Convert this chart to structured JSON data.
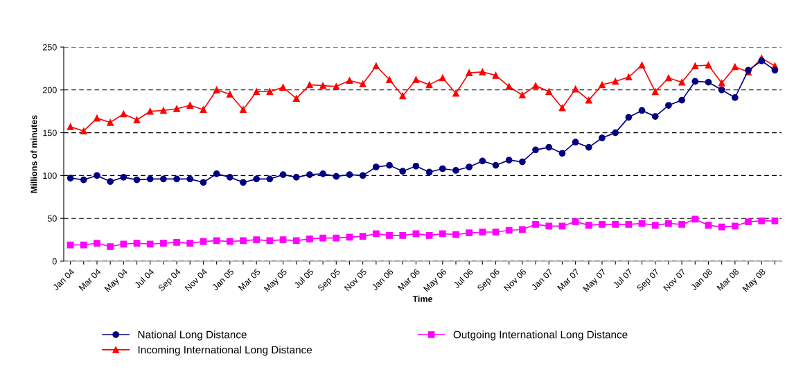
{
  "chart_data": {
    "type": "line",
    "xlabel": "Time",
    "ylabel": "Millions of minutes",
    "categories": [
      "Jan 04",
      null,
      "Mar 04",
      null,
      "May 04",
      null,
      "Jul 04",
      null,
      "Sep 04",
      null,
      "Nov 04",
      null,
      "Jan 05",
      null,
      "Mar 05",
      null,
      "May 05",
      null,
      "Jul 05",
      null,
      "Sep 05",
      null,
      "Nov 05",
      null,
      "Jan 06",
      null,
      "Mar 06",
      null,
      "May 06",
      null,
      "Jul 06",
      null,
      "Sep 06",
      null,
      "Nov 06",
      null,
      "Jan 07",
      null,
      "Mar 07",
      null,
      "May 07",
      null,
      "Jul 07",
      null,
      "Sep 07",
      null,
      "Nov 07",
      null,
      "Jan 08",
      null,
      "Mar 08",
      null,
      "May 08",
      null
    ],
    "series": [
      {
        "name": "National Long Distance",
        "color": "#000080",
        "marker": "circle",
        "values": [
          97,
          95,
          100,
          93,
          98,
          95,
          96,
          96,
          96,
          96,
          92,
          102,
          98,
          92,
          96,
          96,
          101,
          98,
          101,
          102,
          99,
          101,
          100,
          110,
          112,
          105,
          111,
          104,
          108,
          106,
          110,
          117,
          112,
          118,
          116,
          130,
          133,
          126,
          139,
          133,
          144,
          150,
          168,
          176,
          169,
          182,
          188,
          210,
          209,
          200,
          191,
          223,
          234,
          223
        ]
      },
      {
        "name": "Outgoing International Long Distance",
        "color": "#ff00ff",
        "marker": "square",
        "values": [
          19,
          19,
          21,
          17,
          20,
          21,
          20,
          21,
          22,
          21,
          23,
          24,
          23,
          24,
          25,
          24,
          25,
          24,
          26,
          27,
          27,
          28,
          29,
          32,
          30,
          30,
          32,
          30,
          32,
          31,
          33,
          34,
          34,
          36,
          37,
          43,
          41,
          41,
          46,
          42,
          43,
          43,
          43,
          44,
          42,
          44,
          43,
          49,
          42,
          40,
          41,
          46,
          47,
          47
        ]
      },
      {
        "name": "Incoming International Long Distance",
        "color": "#ff0000",
        "marker": "triangle",
        "values": [
          157,
          152,
          167,
          162,
          172,
          165,
          175,
          176,
          178,
          182,
          177,
          200,
          195,
          177,
          198,
          198,
          203,
          190,
          206,
          205,
          204,
          211,
          207,
          228,
          212,
          193,
          212,
          206,
          214,
          196,
          220,
          221,
          217,
          204,
          194,
          205,
          198,
          179,
          201,
          188,
          206,
          210,
          215,
          229,
          198,
          214,
          209,
          228,
          229,
          208,
          227,
          221,
          237,
          228
        ]
      }
    ],
    "ylim": [
      0,
      250
    ],
    "yticks": [
      0,
      50,
      100,
      150,
      200,
      250
    ],
    "grid": "y",
    "legend": "bottom",
    "line_style": "solid"
  }
}
